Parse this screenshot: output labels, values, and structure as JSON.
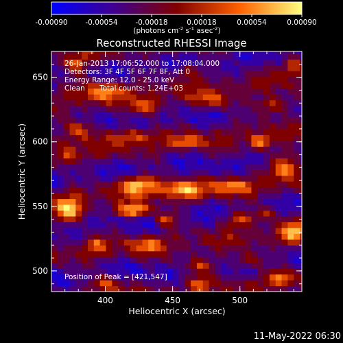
{
  "chart_data": {
    "type": "heatmap",
    "title": "Reconstructed RHESSI Image",
    "xlabel": "Heliocentric X (arcsec)",
    "ylabel": "Heliocentric Y (arcsec)",
    "xlim": [
      360,
      546
    ],
    "ylim": [
      484,
      670
    ],
    "xticks": [
      "400",
      "450",
      "500"
    ],
    "yticks": [
      "500",
      "550",
      "600",
      "650"
    ],
    "colorbar": {
      "range": [
        -0.0009,
        0.0009
      ],
      "ticks": [
        "-0.00090",
        "-0.00054",
        "-0.00018",
        "0.00018",
        "0.00054",
        "0.00090"
      ],
      "unit_label": "(photons cm",
      "unit_sup1": "-2",
      "unit_mid": " s",
      "unit_sup2": "-1",
      "unit_mid2": " asec",
      "unit_sup3": "-2",
      "unit_end": ")"
    },
    "annotations": {
      "time_range": "26-Jan-2013 17:06:52.000 to 17:08:04.000",
      "detectors": "Detectors: 3F 4F 5F 6F 7F 8F, Att 0",
      "energy": "Energy Range: 12.0 - 25.0 keV",
      "method": "Clean",
      "counts": "Total counts: 1.24E+03",
      "peak": "Position of Peak = [421,547]"
    },
    "peak_position": [
      421,
      547
    ],
    "colormap": [
      "#0000ff",
      "#40008f",
      "#800000",
      "#ff6000",
      "#ffff80"
    ]
  },
  "footer_timestamp": "11-May-2022 06:30"
}
